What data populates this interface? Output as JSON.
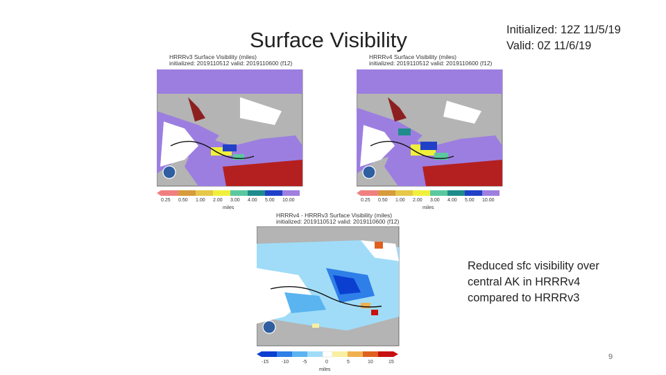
{
  "slide": {
    "title": "Surface Visibility",
    "init_line1": "Initialized: 12Z 11/5/19",
    "init_line2": "Valid: 0Z 11/6/19",
    "note_line1": "Reduced sfc visibility over",
    "note_line2": "central AK in HRRRv4",
    "note_line3": "compared to HRRRv3",
    "page_number": "9"
  },
  "panels": {
    "v3": {
      "title": "HRRRv3 Surface Visibility (miles)",
      "subtitle": "initialized: 2019110512 valid: 2019110600 (f12)",
      "ticks": [
        "0.25",
        "0.50",
        "1.00",
        "2.00",
        "3.00",
        "4.00",
        "5.00",
        "10.00"
      ],
      "units": "miles"
    },
    "v4": {
      "title": "HRRRv4 Surface Visibility (miles)",
      "subtitle": "initialized: 2019110512 valid: 2019110600 (f12)",
      "ticks": [
        "0.25",
        "0.50",
        "1.00",
        "2.00",
        "3.00",
        "4.00",
        "5.00",
        "10.00"
      ],
      "units": "miles"
    },
    "diff": {
      "title": "HRRRv4 - HRRRv3 Surface Visibility (miles)",
      "subtitle": "initialized: 2019110512 valid: 2019110600 (f12)",
      "ticks": [
        "-15",
        "-10",
        "-5",
        "0",
        "5",
        "10",
        "15"
      ],
      "units": "miles"
    }
  },
  "colors": {
    "vis_scale": [
      "#f08080",
      "#d79b3c",
      "#e6c84a",
      "#f0f03c",
      "#5cc8a0",
      "#1e8c8c",
      "#2040c8",
      "#9f7fe0"
    ],
    "diff_scale": [
      "#0a3fd0",
      "#2f7fe8",
      "#5ab4f0",
      "#a0dcf8",
      "#ffffff",
      "#f8f0a0",
      "#f0b050",
      "#e06020",
      "#c81010"
    ],
    "map_gray": "#b4b4b4",
    "violet": "#9c7ee0",
    "dark_red": "#b42020"
  }
}
